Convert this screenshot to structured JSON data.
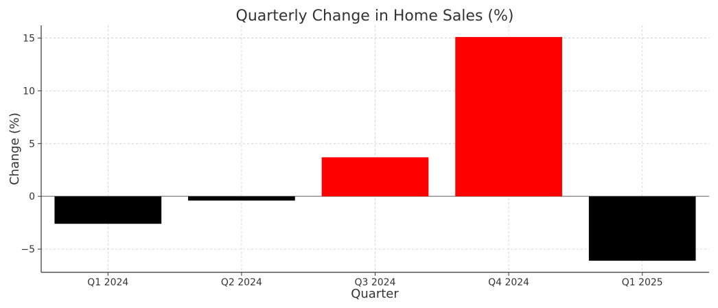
{
  "chart_data": {
    "type": "bar",
    "title": "Quarterly Change in Home Sales (%)",
    "xlabel": "Quarter",
    "ylabel": "Change (%)",
    "categories": [
      "Q1 2024",
      "Q2 2024",
      "Q3 2024",
      "Q4 2024",
      "Q1 2025"
    ],
    "values": [
      -2.6,
      -0.4,
      3.7,
      15.1,
      -6.1
    ],
    "bar_colors": [
      "#000000",
      "#000000",
      "#ff0000",
      "#ff0000",
      "#000000"
    ],
    "ylim": [
      -7.2,
      16.2
    ],
    "yticks": [
      -5,
      0,
      5,
      10,
      15
    ],
    "ytick_labels": [
      "−5",
      "0",
      "5",
      "10",
      "15"
    ],
    "grid": true,
    "zero_line": true
  }
}
